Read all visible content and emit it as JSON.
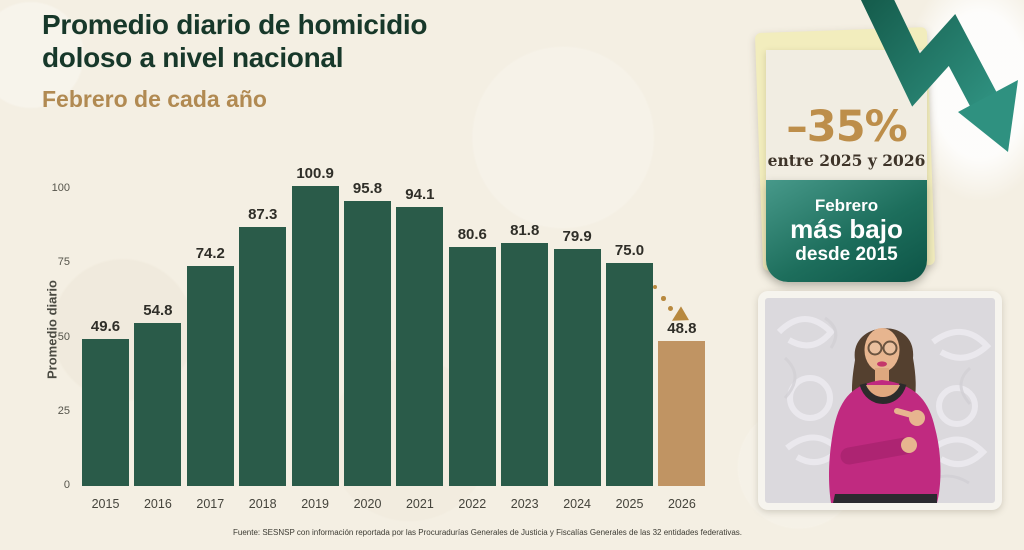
{
  "page": {
    "background": "#f4efe3"
  },
  "header": {
    "title_line1": "Promedio diario de homicidio",
    "title_line2": "doloso a nivel nacional",
    "subtitle": "Febrero de cada año"
  },
  "chart_data": {
    "type": "bar",
    "title": "Promedio diario de homicidio doloso a nivel nacional",
    "subtitle": "Febrero de cada año",
    "categories": [
      "2015",
      "2016",
      "2017",
      "2018",
      "2019",
      "2020",
      "2021",
      "2022",
      "2023",
      "2024",
      "2025",
      "2026"
    ],
    "values": [
      49.6,
      54.8,
      74.2,
      87.3,
      100.9,
      95.8,
      94.1,
      80.6,
      81.8,
      79.9,
      75.0,
      48.8
    ],
    "ylabel": "Promedio diario",
    "xlabel": "",
    "yticks": [
      0,
      25,
      50,
      75,
      100
    ],
    "ylim": [
      0,
      105
    ],
    "grid": false,
    "legend": "none",
    "bar_color": "#2a5b49",
    "highlight": {
      "index": 11,
      "color": "#c09463",
      "annotation": "dotted decline arrow from 2025 bar to 2026 bar"
    }
  },
  "callout": {
    "percent": "–35%",
    "caption": "entre 2025 y 2026",
    "badge_line1": "Febrero",
    "badge_line2": "más bajo",
    "badge_line3": "desde 2015",
    "accent_color": "#bd8e4a",
    "badge_gradient": [
      "#47998a",
      "#0d5446"
    ]
  },
  "footer": {
    "source": "Fuente: SESNSP con información reportada por las Procuradurías Generales de Justicia y Fiscalías Generales de las 32 entidades federativas."
  },
  "icons": {
    "trend_down_arrow": "zigzag arrow pointing down-right (teal)",
    "dotted_decline_arrow": "gold dotted arc with arrowhead",
    "interpreter_video": "sign language interpreter in magenta top over gray damask backdrop"
  }
}
